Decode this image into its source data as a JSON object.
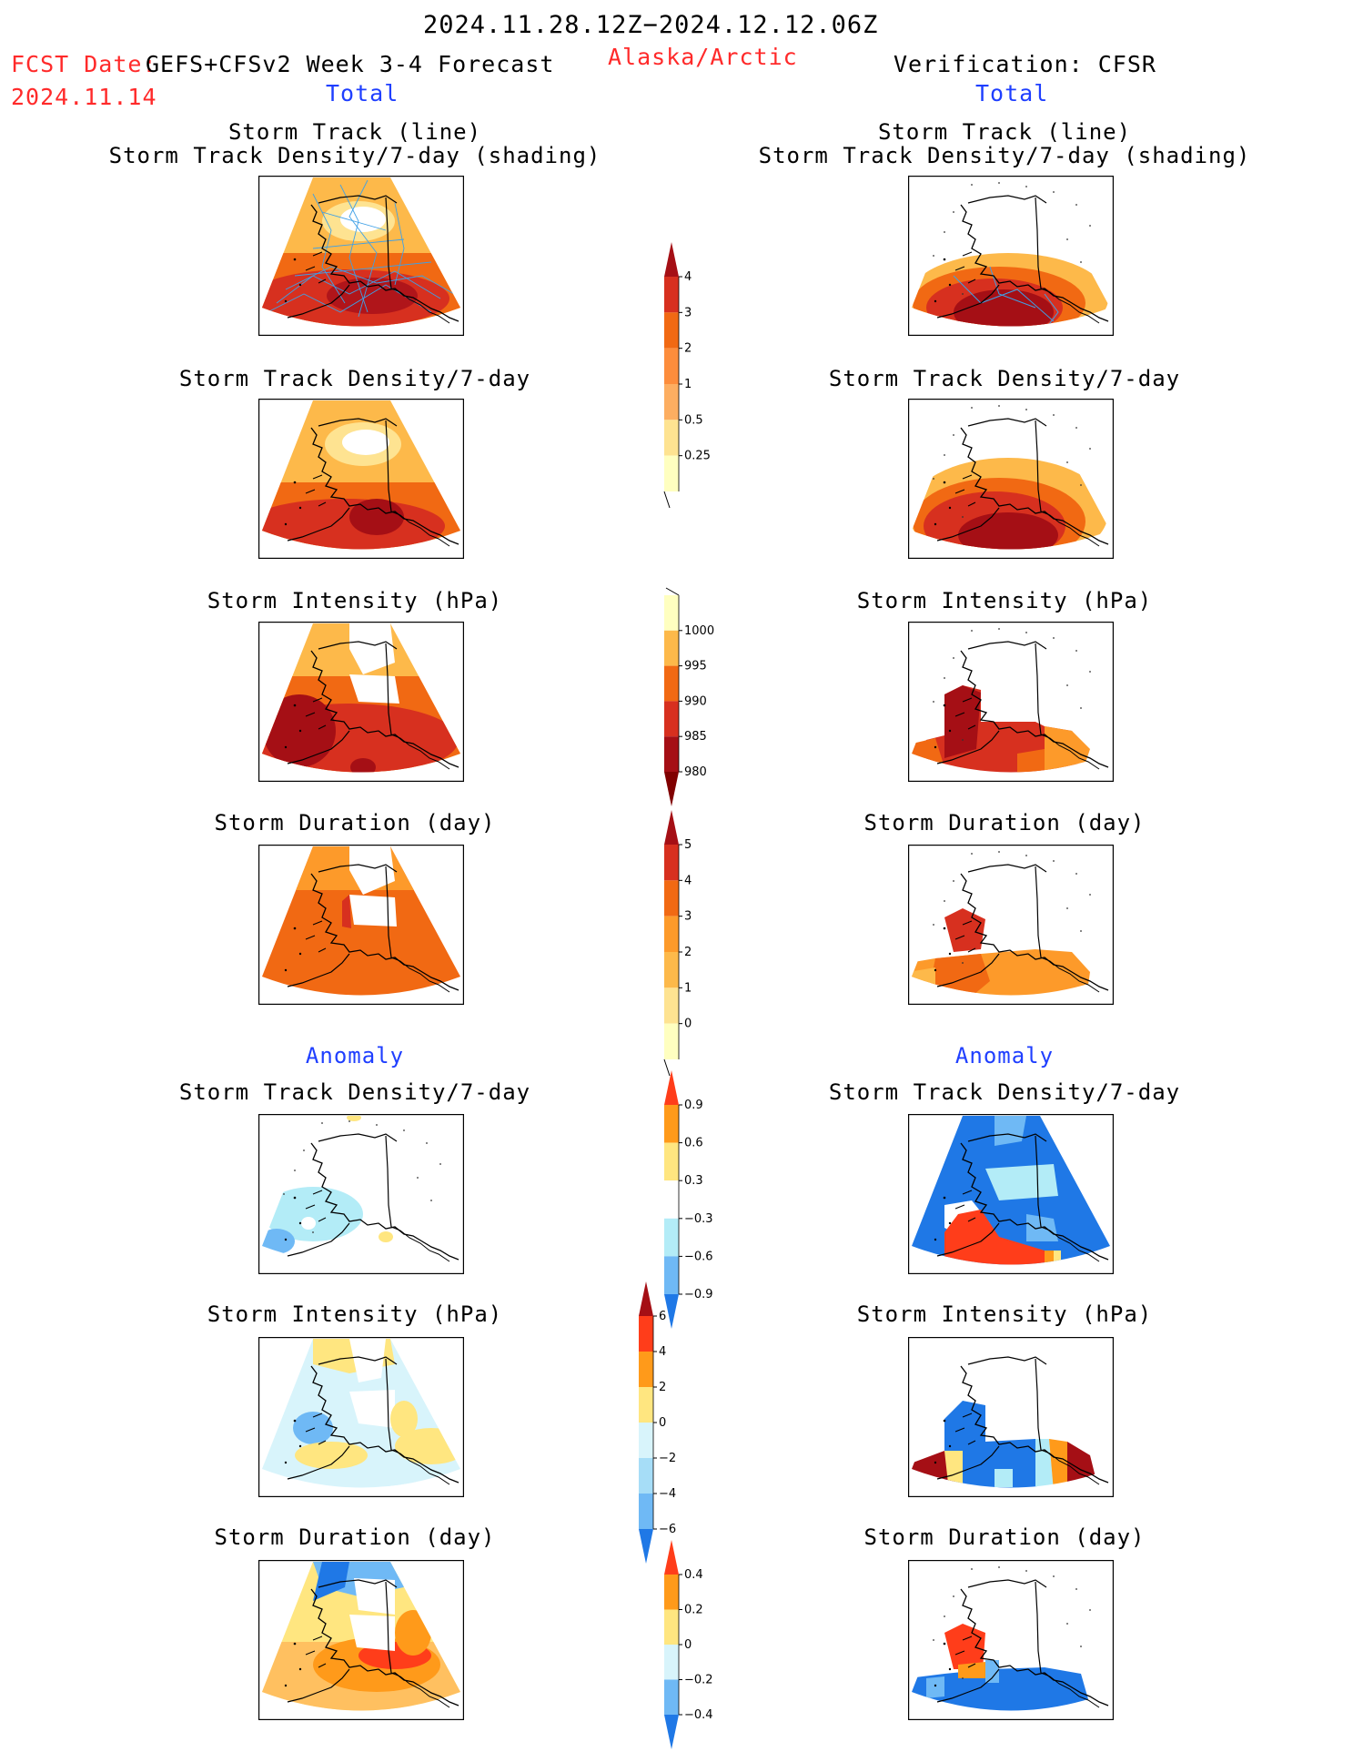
{
  "header": {
    "date_range": "2024.11.28.12Z−2024.12.12.06Z",
    "fcst_label": "FCST Date:",
    "fcst_model": "GEFS+CFSv2 Week 3-4 Forecast",
    "fcst_date": "2024.11.14",
    "region": "Alaska/Arctic",
    "verification": "Verification: CFSR",
    "left_subtitle": "Total",
    "right_subtitle": "Total"
  },
  "sections": {
    "anomaly_left": "Anomaly",
    "anomaly_right": "Anomaly"
  },
  "panels": {
    "fc_track_title_1": "Storm Track (line)",
    "fc_track_title_2": "Storm Track Density/7-day (shading)",
    "vf_track_title_1": "Storm Track (line)",
    "vf_track_title_2": "Storm Track Density/7-day (shading)",
    "fc_density": "Storm Track Density/7-day",
    "vf_density": "Storm Track Density/7-day",
    "fc_intensity": "Storm Intensity (hPa)",
    "vf_intensity": "Storm Intensity (hPa)",
    "fc_duration": "Storm Duration (day)",
    "vf_duration": "Storm Duration (day)",
    "fc_anom_density": "Storm Track Density/7-day",
    "vf_anom_density": "Storm Track Density/7-day",
    "fc_anom_intensity": "Storm Intensity (hPa)",
    "vf_anom_intensity": "Storm Intensity (hPa)",
    "fc_anom_duration": "Storm Duration (day)",
    "vf_anom_duration": "Storm Duration (day)"
  },
  "colorbars": {
    "density": {
      "labels": [
        "4",
        "3",
        "2",
        "1",
        "0.5",
        "0.25"
      ],
      "colors": [
        "#a50f15",
        "#d7301f",
        "#f16913",
        "#fd8d3c",
        "#fdae61",
        "#fee391",
        "#ffffc0"
      ]
    },
    "intensity": {
      "labels": [
        "1000",
        "995",
        "990",
        "985",
        "980"
      ],
      "colors": [
        "#ffffc0",
        "#fdb94a",
        "#f16913",
        "#d7301f",
        "#a50f15",
        "#800000"
      ]
    },
    "duration": {
      "labels": [
        "5",
        "4",
        "3",
        "2",
        "1",
        "0"
      ],
      "colors": [
        "#a50f15",
        "#d7301f",
        "#f16913",
        "#fd9a2a",
        "#fdb94a",
        "#fee391",
        "#ffffc0"
      ]
    },
    "anom_density": {
      "labels": [
        "0.9",
        "0.6",
        "0.3",
        "−0.3",
        "−0.6",
        "−0.9"
      ],
      "colors": [
        "#ff3d1a",
        "#ff9a1a",
        "#ffe680",
        "#ffffff",
        "#b3ecf7",
        "#6fb9f5",
        "#1f78e6"
      ]
    },
    "anom_intensity": {
      "labels": [
        "6",
        "4",
        "2",
        "0",
        "−2",
        "−4",
        "−6"
      ],
      "colors": [
        "#a50f15",
        "#ff3d1a",
        "#ff9a1a",
        "#ffe680",
        "#d8f4fb",
        "#a6ddf7",
        "#6fb9f5",
        "#1f78e6"
      ]
    },
    "anom_duration": {
      "labels": [
        "0.4",
        "0.2",
        "0",
        "−0.2",
        "−0.4"
      ],
      "colors": [
        "#ff3d1a",
        "#ff9a1a",
        "#ffe680",
        "#d8f4fb",
        "#6fb9f5",
        "#1f78e6"
      ]
    }
  }
}
